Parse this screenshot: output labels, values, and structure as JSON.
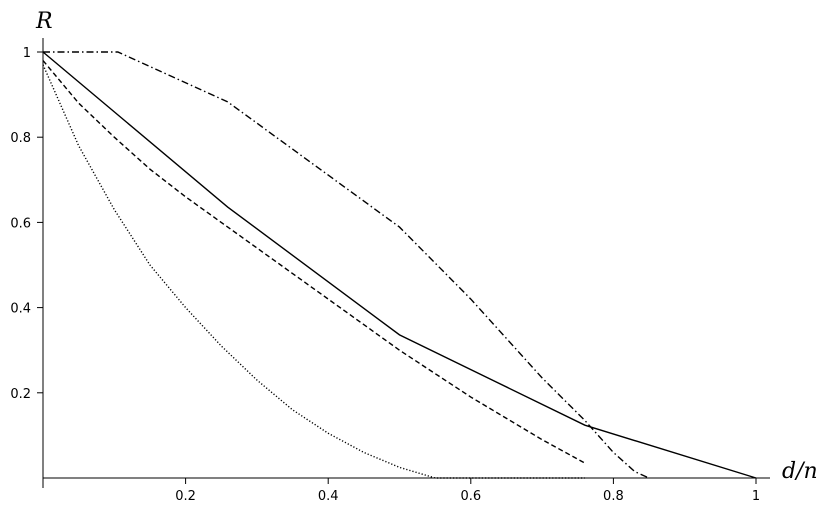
{
  "chart_data": {
    "type": "line",
    "x_label": "d/n",
    "y_label": "R",
    "xlim": [
      0,
      1
    ],
    "ylim": [
      0,
      1
    ],
    "xticks": [
      0.2,
      0.4,
      0.6,
      0.8,
      1
    ],
    "yticks": [
      0.2,
      0.4,
      0.6,
      0.8,
      1
    ],
    "grid": false,
    "series": [
      {
        "color": "#000000",
        "style": "solid",
        "x": [
          0,
          0.259,
          0.5,
          0.76,
          1
        ],
        "values": [
          1,
          0.636,
          0.336,
          0.124,
          0
        ]
      },
      {
        "color": "#000000",
        "style": "dashed",
        "x": [
          0,
          0.05,
          0.1,
          0.15,
          0.2,
          0.25,
          0.3,
          0.4,
          0.5,
          0.6,
          0.7,
          0.76
        ],
        "values": [
          0.98,
          0.88,
          0.8,
          0.725,
          0.66,
          0.6,
          0.54,
          0.42,
          0.3,
          0.19,
          0.09,
          0.035
        ]
      },
      {
        "color": "#000000",
        "style": "dotted",
        "x": [
          0,
          0.05,
          0.1,
          0.15,
          0.2,
          0.25,
          0.3,
          0.35,
          0.4,
          0.45,
          0.5,
          0.55,
          0.76
        ],
        "values": [
          0.97,
          0.78,
          0.63,
          0.5,
          0.4,
          0.31,
          0.23,
          0.16,
          0.105,
          0.06,
          0.025,
          0,
          0
        ]
      },
      {
        "color": "#000000",
        "style": "dashdot",
        "x": [
          0,
          0.105,
          0.259,
          0.5,
          0.6,
          0.7,
          0.76,
          0.8,
          0.83,
          0.85
        ],
        "values": [
          1,
          1,
          0.883,
          0.589,
          0.42,
          0.235,
          0.135,
          0.06,
          0.015,
          0
        ]
      }
    ]
  }
}
